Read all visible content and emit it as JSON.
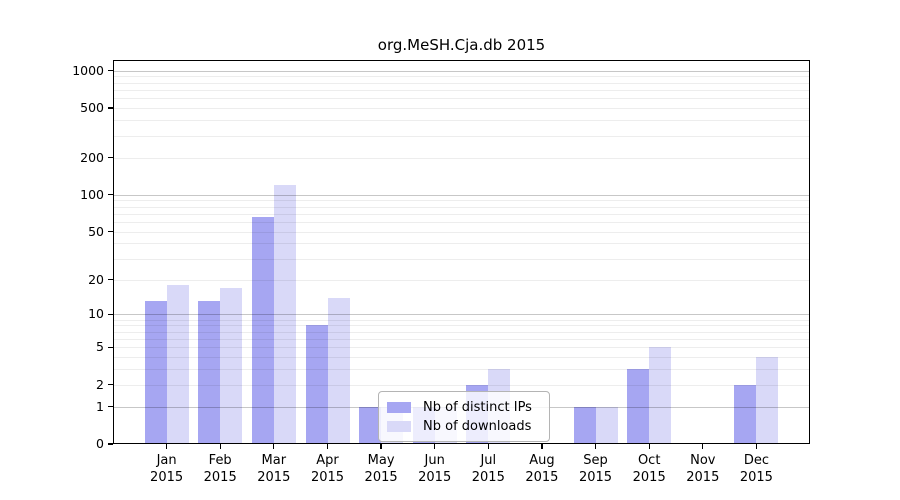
{
  "title": "org.MeSH.Cja.db 2015",
  "chart_data": {
    "type": "bar",
    "title": "org.MeSH.Cja.db 2015",
    "year": "2015",
    "categories": [
      "Jan 2015",
      "Feb 2015",
      "Mar 2015",
      "Apr 2015",
      "May 2015",
      "Jun 2015",
      "Jul 2015",
      "Aug 2015",
      "Sep 2015",
      "Oct 2015",
      "Nov 2015",
      "Dec 2015"
    ],
    "series": [
      {
        "name": "Nb of distinct IPs",
        "color": "#a6a6f2",
        "values": [
          13,
          13,
          66,
          8,
          1,
          1,
          2,
          0,
          1,
          3,
          0,
          2
        ]
      },
      {
        "name": "Nb of downloads",
        "color": "#d9d9f8",
        "values": [
          18,
          17,
          119,
          14,
          1,
          1,
          3,
          0,
          1,
          5,
          0,
          4
        ]
      }
    ],
    "xlabel": "",
    "ylabel": "",
    "y_scale": "log1p",
    "y_ticks": [
      0,
      1,
      2,
      5,
      10,
      20,
      50,
      100,
      200,
      500,
      1000
    ],
    "ylim": [
      0,
      1220
    ],
    "grid": true,
    "legend_position": "bottom-center"
  },
  "colors": {
    "background": "#ffffff",
    "axis_frame": "#000000",
    "grid_major": "rgba(0,0,0,0.22)",
    "grid_minor": "rgba(0,0,0,0.07)",
    "text": "#000000",
    "legend_border": "#b4b4b4",
    "legend_bg": "rgba(255,255,255,0.8)"
  }
}
